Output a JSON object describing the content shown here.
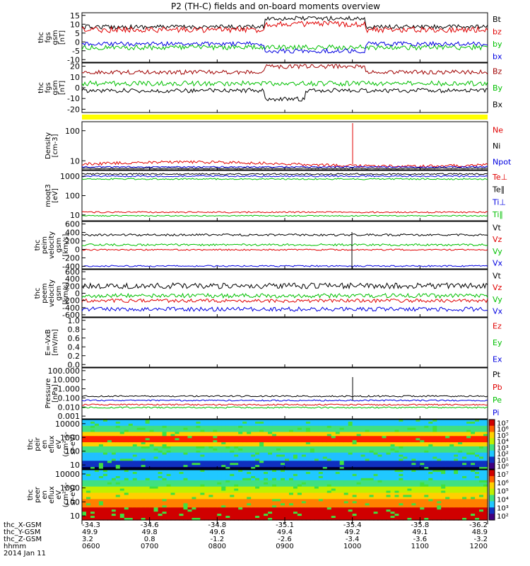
{
  "chart_data": {
    "type": "line",
    "title": "P2 (TH-C) fields and on-board moments overview",
    "panels": [
      {
        "ylabel": [
          "thc",
          "fgs",
          "gsm",
          "[nT]"
        ],
        "yticks": [
          "15",
          "10",
          "5",
          "0",
          "-5",
          "-10"
        ],
        "ylim": [
          -10,
          15
        ],
        "labels": [
          {
            "text": "Bt",
            "color": "#000000"
          },
          {
            "text": "bz",
            "color": "#e00000"
          },
          {
            "text": "by",
            "color": "#00c000"
          },
          {
            "text": "bx",
            "color": "#0000e0"
          }
        ]
      },
      {
        "ylabel": [
          "thc",
          "fgs",
          "gsm",
          "[nT]"
        ],
        "yticks": [
          "20",
          "10",
          "0",
          "-10",
          "-20"
        ],
        "ylim": [
          -25,
          25
        ],
        "labels": [
          {
            "text": "Bz",
            "color": "#a00000"
          },
          {
            "text": "By",
            "color": "#00c000"
          },
          {
            "text": "Bx",
            "color": "#000000"
          }
        ]
      },
      {
        "ylabel": [
          "Density",
          "[cm-3]"
        ],
        "yticks": [
          "100",
          "10"
        ],
        "labels": [
          {
            "text": "Ne",
            "color": "#e00000"
          },
          {
            "text": "Ni",
            "color": "#000000"
          },
          {
            "text": "Npot",
            "color": "#0000e0"
          }
        ]
      },
      {
        "ylabel": [
          "moqt3",
          "[eV]"
        ],
        "yticks": [
          "1000",
          "100",
          "10"
        ],
        "labels": [
          {
            "text": "Te⊥",
            "color": "#e00000"
          },
          {
            "text": "Te∥",
            "color": "#000000"
          },
          {
            "text": "Ti⊥",
            "color": "#0000e0"
          },
          {
            "text": "Ti∥",
            "color": "#00c000"
          }
        ]
      },
      {
        "ylabel": [
          "thc",
          "peim",
          "velocity",
          "gsm",
          "[km/s]"
        ],
        "yticks": [
          "600",
          "400",
          "200",
          "0",
          "-200",
          "-400"
        ],
        "ylim": [
          -400,
          600
        ],
        "labels": [
          {
            "text": "Vt",
            "color": "#000000"
          },
          {
            "text": "Vz",
            "color": "#e00000"
          },
          {
            "text": "Vy",
            "color": "#00c000"
          },
          {
            "text": "Vx",
            "color": "#0000e0"
          }
        ]
      },
      {
        "ylabel": [
          "thc",
          "peem",
          "velocity",
          "gsm",
          "[km/s]"
        ],
        "yticks": [
          "600",
          "400",
          "200",
          "0",
          "-200",
          "-400",
          "-600"
        ],
        "ylim": [
          -600,
          600
        ],
        "labels": [
          {
            "text": "Vt",
            "color": "#000000"
          },
          {
            "text": "Vz",
            "color": "#e00000"
          },
          {
            "text": "Vy",
            "color": "#00c000"
          },
          {
            "text": "Vx",
            "color": "#0000e0"
          }
        ]
      },
      {
        "ylabel": [
          "E=-VxB",
          "[mV/m]"
        ],
        "yticks": [
          "1.0",
          "0.8",
          "0.6",
          "0.4",
          "0.2",
          "0.0"
        ],
        "ylim": [
          0,
          1
        ],
        "labels": [
          {
            "text": "Ez",
            "color": "#e00000"
          },
          {
            "text": "Ey",
            "color": "#00c000"
          },
          {
            "text": "Ex",
            "color": "#0000e0"
          }
        ]
      },
      {
        "ylabel": [
          "Pressure",
          "[nPa]"
        ],
        "yticks": [
          "100.000",
          "10.000",
          "1.000",
          "0.100",
          "0.010",
          "0.001"
        ],
        "labels": [
          {
            "text": "Pt",
            "color": "#000000"
          },
          {
            "text": "Pb",
            "color": "#e00000"
          },
          {
            "text": "Pe",
            "color": "#00c000"
          },
          {
            "text": "Pi",
            "color": "#0000e0"
          }
        ]
      },
      {
        "ylabel": [
          "thc",
          "peir",
          "en",
          "eflux",
          "eV",
          "(cm²-s-",
          "sr-eV)"
        ],
        "yticks": [
          "10000",
          "1000",
          "100",
          "10"
        ],
        "type": "spectrogram"
      },
      {
        "ylabel": [
          "thc",
          "peer",
          "en",
          "eflux",
          "eV",
          "(cm²-s-",
          "sr-eV)"
        ],
        "yticks": [
          "10000",
          "1000",
          "100",
          "10"
        ],
        "type": "spectrogram"
      }
    ],
    "colorbar": {
      "upper_ticks": [
        "10⁷",
        "10⁶",
        "10⁵",
        "10⁴",
        "10³",
        "10²",
        "10¹",
        "10⁰"
      ],
      "lower_ticks": [
        "10⁷",
        "10⁶",
        "10⁵",
        "10⁴",
        "10³",
        "10²"
      ]
    },
    "footer": {
      "row_labels": [
        "thc_X-GSM",
        "thc_Y-GSM",
        "thc_Z-GSM",
        "hhmm",
        "2014 Jan 11"
      ],
      "columns": [
        [
          "-34.3",
          "49.9",
          "3.2",
          "0600"
        ],
        [
          "-34.6",
          "49.8",
          "0.8",
          "0700"
        ],
        [
          "-34.8",
          "49.6",
          "-1.2",
          "0800"
        ],
        [
          "-35.1",
          "49.4",
          "-2.6",
          "0900"
        ],
        [
          "-35.4",
          "49.2",
          "-3.4",
          "1000"
        ],
        [
          "-35.8",
          "49.1",
          "-3.6",
          "1100"
        ],
        [
          "-36.2",
          "48.9",
          "-3.2",
          "1200"
        ]
      ]
    },
    "colors": {
      "black": "#000000",
      "red": "#e00000",
      "green": "#00c000",
      "blue": "#0000e0",
      "darkred": "#a00000",
      "yellow": "#ffff00"
    }
  }
}
